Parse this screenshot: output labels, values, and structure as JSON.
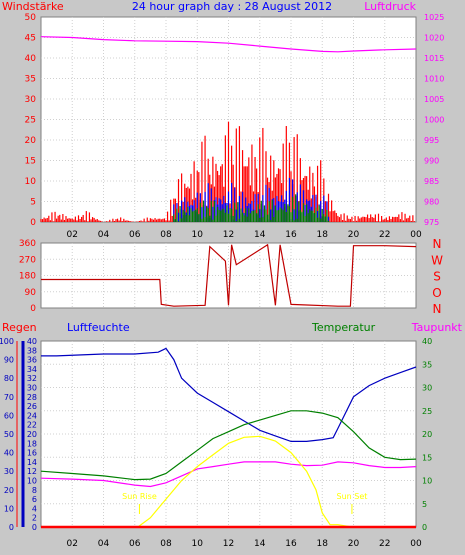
{
  "chart_data": [
    {
      "id": "wind",
      "type": "bar",
      "title": "24 hour graph day : 28 August 2012",
      "ylabel_left": "Windstärke",
      "ylabel_right": "Luftdruck",
      "ylim_left": [
        0,
        50
      ],
      "ylim_right": [
        975,
        1025
      ],
      "yticks_left": [
        0,
        5,
        10,
        15,
        20,
        25,
        30,
        35,
        40,
        45,
        50
      ],
      "yticks_right": [
        975,
        980,
        985,
        990,
        995,
        1000,
        1005,
        1010,
        1015,
        1020,
        1025
      ],
      "xticks": [
        "02",
        "04",
        "06",
        "08",
        "10",
        "12",
        "14",
        "16",
        "18",
        "20",
        "22",
        "00"
      ],
      "grid": true,
      "series": [
        {
          "name": "Luftdruck",
          "color": "#ff00ff",
          "axis": "right",
          "x": [
            0,
            2,
            4,
            6,
            8,
            10,
            12,
            14,
            16,
            18,
            19,
            20,
            22,
            24
          ],
          "values": [
            1020.2,
            1020.0,
            1019.5,
            1019.2,
            1019.1,
            1019.0,
            1018.6,
            1017.9,
            1017.2,
            1016.6,
            1016.5,
            1016.7,
            1017.0,
            1017.2
          ]
        },
        {
          "color": "#ff0000",
          "x": [
            0,
            1,
            2,
            3,
            4,
            5,
            6,
            7,
            8,
            8.5,
            9,
            10,
            11,
            12,
            13,
            14,
            15,
            16,
            17,
            18,
            18.5,
            19,
            20,
            21,
            22,
            23,
            24
          ],
          "values": [
            1,
            2,
            1,
            2,
            0,
            1,
            0,
            1,
            1,
            6,
            10,
            14,
            16,
            18,
            19,
            16,
            16,
            18,
            14,
            10,
            6,
            2,
            1,
            2,
            1,
            2,
            1
          ]
        },
        {
          "color": "#0000ff",
          "x": [
            8.5,
            9,
            10,
            11,
            12,
            13,
            14,
            15,
            16,
            17,
            18,
            18.5
          ],
          "values": [
            3,
            5,
            6,
            7,
            7,
            6,
            6,
            7,
            8,
            7,
            5,
            3
          ]
        },
        {
          "color": "#008000",
          "x": [
            8.5,
            9,
            10,
            11,
            12,
            13,
            14,
            15,
            16,
            17,
            18,
            18.5
          ],
          "values": [
            2,
            3,
            4,
            4,
            4,
            3,
            4,
            4,
            5,
            4,
            3,
            2
          ]
        }
      ]
    },
    {
      "id": "direction",
      "type": "line",
      "ylim_left": [
        0,
        360
      ],
      "yticks_left": [
        0,
        90,
        180,
        270,
        360
      ],
      "yticks_right_labels": [
        "N",
        "W",
        "S",
        "O",
        "N"
      ],
      "grid": true,
      "series": [
        {
          "color": "#c00000",
          "x": [
            0,
            7.6,
            7.7,
            8.5,
            10.5,
            10.8,
            11.8,
            12.0,
            12.2,
            12.5,
            14.5,
            15.0,
            15.3,
            16.0,
            19.0,
            19.8,
            20.0,
            22.0,
            24.0
          ],
          "values": [
            158,
            158,
            20,
            10,
            15,
            340,
            260,
            15,
            350,
            240,
            350,
            15,
            350,
            20,
            10,
            10,
            345,
            345,
            340
          ]
        }
      ]
    },
    {
      "id": "climate",
      "type": "line",
      "ylabel_left_1": "Regen",
      "ylabel_left_2": "Luftfeuchte",
      "ylabel_right_1": "Temperatur",
      "ylabel_right_2": "Taupunkt",
      "ylim_left": [
        0,
        100
      ],
      "yticks_left": [
        0,
        10,
        20,
        30,
        40,
        50,
        60,
        70,
        80,
        90,
        100
      ],
      "ylim_mid": [
        0,
        40
      ],
      "yticks_mid": [
        0,
        2,
        4,
        6,
        8,
        10,
        12,
        14,
        16,
        18,
        20,
        22,
        24,
        26,
        28,
        30,
        32,
        34,
        36,
        38,
        40
      ],
      "ylim_right": [
        0,
        40
      ],
      "yticks_right": [
        0,
        5,
        10,
        15,
        20,
        25,
        30,
        35,
        40
      ],
      "xticks": [
        "02",
        "04",
        "06",
        "08",
        "10",
        "12",
        "14",
        "16",
        "18",
        "20",
        "22",
        "00"
      ],
      "grid": true,
      "annotations": {
        "sun_rise": "Sun Rise",
        "sun_set": "Sun Set",
        "sun_rise_hour": 6.3,
        "sun_set_hour": 19.9
      },
      "series": [
        {
          "name": "Luftfeuchte",
          "color": "#0000c0",
          "axis": "left",
          "x": [
            0,
            1,
            4,
            6,
            7.5,
            8,
            8.5,
            9,
            10,
            11,
            12,
            13,
            14,
            15,
            16,
            17,
            18,
            18.7,
            19,
            20,
            21,
            22,
            23,
            24
          ],
          "values": [
            92,
            92,
            93,
            93,
            94,
            96,
            90,
            80,
            72,
            67,
            62,
            57,
            52,
            49,
            46,
            46,
            47,
            48,
            53,
            70,
            76,
            80,
            83,
            86
          ]
        },
        {
          "name": "Temperatur",
          "color": "#008000",
          "axis": "right",
          "x": [
            0,
            2,
            4,
            6,
            7,
            8,
            9,
            10,
            11,
            12,
            13,
            14,
            15,
            16,
            17,
            18,
            19,
            20,
            21,
            22,
            23,
            24
          ],
          "values": [
            12,
            11.5,
            11,
            10.2,
            10.3,
            11.5,
            14,
            16.5,
            19,
            20.5,
            22,
            23,
            24,
            25,
            25,
            24.5,
            23.5,
            20.5,
            17,
            15,
            14.5,
            14.6
          ]
        },
        {
          "name": "Taupunkt",
          "color": "#ff00ff",
          "axis": "right",
          "x": [
            0,
            2,
            4,
            6,
            7,
            8,
            9,
            10,
            11,
            12,
            13,
            14,
            15,
            16,
            17,
            18,
            19,
            20,
            21,
            22,
            23,
            24
          ],
          "values": [
            10.5,
            10.3,
            10,
            9,
            8.7,
            9.5,
            11,
            12.5,
            13,
            13.5,
            14,
            14,
            14,
            13.5,
            13.2,
            13.3,
            14,
            13.8,
            13.2,
            12.8,
            12.8,
            13
          ]
        },
        {
          "color": "#ffff00",
          "axis": "right",
          "x": [
            6.2,
            7,
            8,
            9,
            10,
            11,
            12,
            13,
            14,
            15,
            16,
            17,
            17.6,
            18,
            18.5,
            19.0,
            19.9
          ],
          "values": [
            0,
            2,
            6,
            10,
            13,
            15.5,
            18,
            19.3,
            19.5,
            18.5,
            16,
            12,
            8,
            3,
            0.5,
            0.5,
            0
          ]
        },
        {
          "name": "Regen",
          "color": "#ff0000",
          "axis": "left",
          "x": [
            0,
            24
          ],
          "values": [
            0,
            0
          ]
        }
      ]
    }
  ]
}
